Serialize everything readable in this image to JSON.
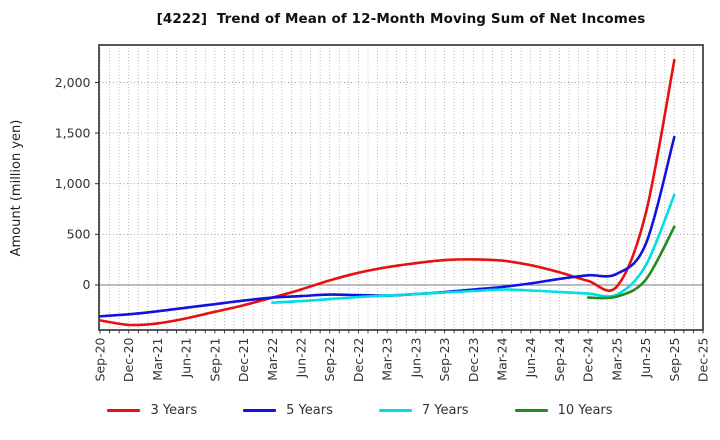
{
  "colors": {
    "background": "#ffffff",
    "axis": "#2e2e2e",
    "grid": "#b0b0b0",
    "hgrid": "#909090",
    "zero_line": "#8a8a8a",
    "tick_text": "#333333",
    "title_text": "#111111"
  },
  "chart_data": {
    "type": "line",
    "title": "[4222]  Trend of Mean of 12-Month Moving Sum of Net Incomes",
    "xlabel": "",
    "ylabel": "Amount (million yen)",
    "categories": [
      "Sep-20",
      "Dec-20",
      "Mar-21",
      "Jun-21",
      "Sep-21",
      "Dec-21",
      "Mar-22",
      "Jun-22",
      "Sep-22",
      "Dec-22",
      "Mar-23",
      "Jun-23",
      "Sep-23",
      "Dec-23",
      "Mar-24",
      "Jun-24",
      "Sep-24",
      "Dec-24",
      "Mar-25",
      "Jun-25",
      "Sep-25",
      "Dec-25"
    ],
    "yticks": [
      0,
      500,
      1000,
      1500,
      2000
    ],
    "ylim": [
      -445,
      2370
    ],
    "grid": true,
    "legend_position": "bottom",
    "series": [
      {
        "name": "3 Years",
        "color": "#e81010",
        "values": [
          -350,
          -395,
          -380,
          -330,
          -265,
          -200,
          -125,
          -45,
          45,
          120,
          175,
          215,
          245,
          252,
          240,
          195,
          125,
          40,
          -15,
          700,
          2220,
          null
        ]
      },
      {
        "name": "5 Years",
        "color": "#1212dd",
        "values": [
          -310,
          -290,
          -260,
          -225,
          -190,
          -155,
          -125,
          -110,
          -95,
          -100,
          -105,
          -90,
          -70,
          -45,
          -20,
          15,
          60,
          95,
          110,
          400,
          1460,
          null
        ]
      },
      {
        "name": "7 Years",
        "color": "#00dde6",
        "values": [
          null,
          null,
          null,
          null,
          null,
          null,
          -175,
          -160,
          -140,
          -120,
          -105,
          -90,
          -75,
          -60,
          -45,
          -55,
          -70,
          -85,
          -95,
          190,
          890,
          null
        ]
      },
      {
        "name": "10 Years",
        "color": "#228b22",
        "values": [
          null,
          null,
          null,
          null,
          null,
          null,
          null,
          null,
          null,
          null,
          null,
          null,
          null,
          null,
          null,
          null,
          null,
          -125,
          -115,
          50,
          575,
          null
        ]
      }
    ]
  }
}
